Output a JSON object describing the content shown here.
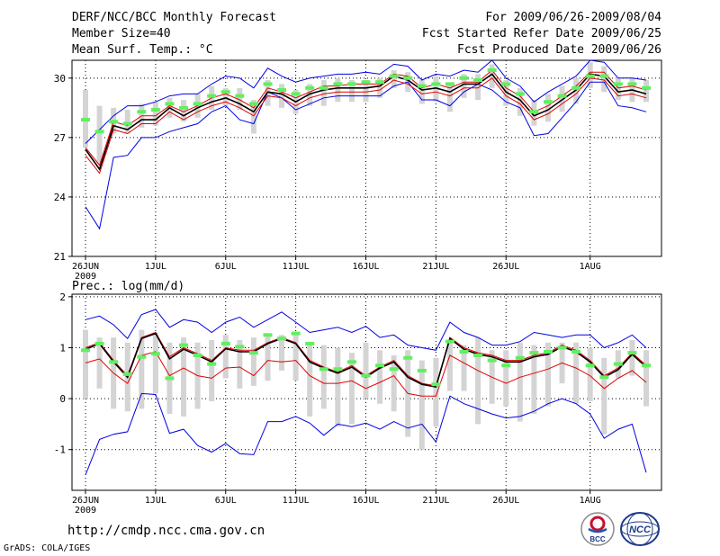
{
  "header": {
    "title": "DERF/NCC/BCC Monthly Forecast",
    "member_size": "Member Size=40",
    "variable": "Mean Surf. Temp.: °C",
    "period": "For 2009/06/26-2009/08/04",
    "refer_date": "Fcst Started Refer Date 2009/06/25",
    "produced_date": "Fcst Produced Date 2009/06/26"
  },
  "footer": {
    "url": "http://cmdp.ncc.cma.gov.cn",
    "grads": "GrADS: COLA/IGES",
    "logo_left": "BCC",
    "logo_right": "NCC"
  },
  "colors": {
    "envelope": "#0000e0",
    "percentile": "#e00000",
    "ensemble_mean": "#000000",
    "median_marker": "#5ff05f",
    "box": "#d4d4d4"
  },
  "chart_data": [
    {
      "type": "line",
      "id": "temp",
      "subtitle": "",
      "x_tick_labels": [
        "26JUN",
        "1JUL",
        "6JUL",
        "11JUL",
        "16JUL",
        "21JUL",
        "26JUL",
        "1AUG"
      ],
      "x_tick_days": [
        0,
        5,
        10,
        15,
        20,
        25,
        30,
        36
      ],
      "x_sublabel": "2009",
      "y_ticks": [
        21,
        24,
        27,
        30
      ],
      "ylim": [
        21,
        30.9
      ],
      "series": [
        {
          "name": "max",
          "values": [
            23.5,
            22.4,
            26,
            26.1,
            27,
            27,
            27.3,
            27.5,
            27.7,
            28.3,
            28.6,
            27.9,
            27.7,
            29.3,
            29,
            28.4,
            28.7,
            29,
            29.1,
            29.1,
            29.1,
            29.1,
            29.6,
            29.8,
            28.9,
            28.9,
            28.6,
            29.3,
            29.7,
            29.4,
            28.8,
            28.5,
            27.1,
            27.2,
            28,
            28.8,
            29.8,
            29.8,
            28.6,
            28.5,
            28.3
          ]
        },
        {
          "name": "p75",
          "values": [
            26.5,
            25.6,
            27.8,
            27.6,
            28.1,
            28.1,
            28.6,
            28.3,
            28.6,
            29,
            29.2,
            28.9,
            28.5,
            29.5,
            29.3,
            29,
            29.3,
            29.6,
            29.6,
            29.7,
            29.7,
            29.7,
            30.2,
            30.1,
            29.5,
            29.7,
            29.5,
            29.8,
            29.8,
            30.4,
            29.5,
            29.1,
            28.3,
            28.6,
            29.1,
            29.6,
            30.3,
            30.3,
            29.5,
            29.6,
            29.4
          ]
        },
        {
          "name": "mean",
          "values": [
            26.4,
            25.4,
            27.6,
            27.4,
            27.9,
            27.9,
            28.5,
            28.1,
            28.5,
            28.8,
            29,
            28.7,
            28.3,
            29.3,
            29.2,
            28.8,
            29.2,
            29.4,
            29.5,
            29.5,
            29.5,
            29.6,
            30.1,
            29.9,
            29.4,
            29.5,
            29.3,
            29.7,
            29.7,
            30.2,
            29.3,
            28.9,
            28.1,
            28.4,
            28.9,
            29.4,
            30.2,
            30.1,
            29.3,
            29.4,
            29.2
          ]
        },
        {
          "name": "p25",
          "values": [
            26.1,
            25.2,
            27.4,
            27.2,
            27.7,
            27.7,
            28.3,
            27.9,
            28.3,
            28.6,
            28.8,
            28.5,
            28.1,
            29.1,
            29,
            28.6,
            29,
            29.2,
            29.3,
            29.3,
            29.3,
            29.4,
            29.9,
            29.7,
            29.2,
            29.3,
            29.1,
            29.5,
            29.5,
            30,
            29.1,
            28.7,
            27.9,
            28.2,
            28.7,
            29.2,
            30,
            29.9,
            29.1,
            29.2,
            29
          ]
        },
        {
          "name": "min",
          "values": [
            26.7,
            27.4,
            28.1,
            28.6,
            28.6,
            28.8,
            29.1,
            29.2,
            29.2,
            29.7,
            30.1,
            30,
            29.5,
            30.5,
            30.1,
            29.8,
            30,
            30.1,
            30.2,
            30.2,
            30.3,
            30.2,
            30.7,
            30.6,
            29.9,
            30.2,
            30.1,
            30.4,
            30.3,
            30.9,
            30,
            29.6,
            28.8,
            29.3,
            29.7,
            30.1,
            30.9,
            30.8,
            30,
            30,
            29.9
          ]
        }
      ],
      "medians": [
        27.9,
        27.3,
        27.8,
        27.7,
        28.3,
        28.4,
        28.7,
        28.5,
        28.7,
        29.1,
        29.3,
        29.1,
        28.7,
        29.7,
        29.4,
        29.2,
        29.5,
        29.5,
        29.7,
        29.7,
        29.8,
        29.8,
        30.1,
        30,
        29.6,
        29.7,
        29.7,
        30,
        29.9,
        30.4,
        29.7,
        29.2,
        28.3,
        28.8,
        29.1,
        29.5,
        30.1,
        30.1,
        29.7,
        29.7,
        29.5
      ],
      "boxes": [
        [
          26.5,
          29.4
        ],
        [
          25.7,
          28.6
        ],
        [
          27.2,
          28.5
        ],
        [
          27.2,
          28.4
        ],
        [
          27.5,
          28.7
        ],
        [
          27.6,
          28.8
        ],
        [
          28,
          29
        ],
        [
          27.8,
          28.9
        ],
        [
          28,
          29.2
        ],
        [
          28.4,
          29.6
        ],
        [
          28.6,
          29.5
        ],
        [
          28.4,
          29.5
        ],
        [
          27.2,
          28.9
        ],
        [
          28.6,
          29.9
        ],
        [
          28.5,
          29.7
        ],
        [
          28.2,
          29.4
        ],
        [
          28.6,
          29.7
        ],
        [
          28.6,
          29.9
        ],
        [
          28.8,
          30
        ],
        [
          28.8,
          29.9
        ],
        [
          28.8,
          29.9
        ],
        [
          29,
          30
        ],
        [
          29.5,
          30.4
        ],
        [
          29.3,
          30.3
        ],
        [
          28.7,
          29.9
        ],
        [
          28.8,
          30.1
        ],
        [
          28.3,
          29.7
        ],
        [
          29,
          30.2
        ],
        [
          28.9,
          30.2
        ],
        [
          29.5,
          30.7
        ],
        [
          28.6,
          29.9
        ],
        [
          28.1,
          29.5
        ],
        [
          27.6,
          28.9
        ],
        [
          27.8,
          29.2
        ],
        [
          28.3,
          29.6
        ],
        [
          28.7,
          30
        ],
        [
          29.5,
          30.8
        ],
        [
          29.3,
          30.6
        ],
        [
          28.9,
          30
        ],
        [
          28.8,
          30
        ],
        [
          28.8,
          29.9
        ]
      ]
    },
    {
      "type": "line",
      "id": "prec",
      "subtitle": "Prec.: log(mm/d)",
      "x_tick_labels": [
        "26JUN",
        "1JUL",
        "6JUL",
        "11JUL",
        "16JUL",
        "21JUL",
        "26JUL",
        "1AUG"
      ],
      "x_tick_days": [
        0,
        5,
        10,
        15,
        20,
        25,
        30,
        36
      ],
      "x_sublabel": "2009",
      "y_ticks": [
        -1,
        0,
        1,
        2
      ],
      "ylim": [
        -1.8,
        2.05
      ],
      "series": [
        {
          "name": "max",
          "values": [
            1.55,
            1.62,
            1.45,
            1.18,
            1.65,
            1.75,
            1.4,
            1.55,
            1.5,
            1.3,
            1.5,
            1.6,
            1.4,
            1.55,
            1.7,
            1.5,
            1.3,
            1.35,
            1.4,
            1.3,
            1.42,
            1.2,
            1.25,
            1.05,
            1.0,
            0.95,
            1.5,
            1.3,
            1.2,
            1.05,
            1.05,
            1.12,
            1.3,
            1.25,
            1.2,
            1.25,
            1.25,
            1.0,
            1.1,
            1.25,
            1.0
          ]
        },
        {
          "name": "p75",
          "values": [
            1.0,
            1.1,
            0.75,
            0.45,
            1.2,
            1.3,
            0.82,
            1.0,
            0.88,
            0.75,
            1.0,
            0.95,
            0.95,
            1.1,
            1.2,
            1.1,
            0.75,
            0.62,
            0.52,
            0.65,
            0.45,
            0.62,
            0.75,
            0.45,
            0.3,
            0.25,
            1.2,
            1.0,
            0.9,
            0.85,
            0.75,
            0.75,
            0.85,
            0.9,
            1.05,
            0.95,
            0.75,
            0.45,
            0.6,
            0.9,
            0.65
          ]
        },
        {
          "name": "mean",
          "values": [
            0.97,
            1.08,
            0.72,
            0.42,
            1.18,
            1.28,
            0.78,
            0.97,
            0.85,
            0.72,
            0.98,
            0.92,
            0.92,
            1.08,
            1.18,
            1.08,
            0.72,
            0.6,
            0.5,
            0.62,
            0.42,
            0.6,
            0.72,
            0.42,
            0.28,
            0.23,
            1.18,
            0.97,
            0.87,
            0.82,
            0.72,
            0.72,
            0.82,
            0.87,
            1.02,
            0.92,
            0.72,
            0.42,
            0.57,
            0.87,
            0.62
          ]
        },
        {
          "name": "p25",
          "values": [
            0.7,
            0.78,
            0.5,
            0.3,
            0.85,
            0.92,
            0.45,
            0.6,
            0.45,
            0.4,
            0.6,
            0.62,
            0.45,
            0.75,
            0.72,
            0.75,
            0.45,
            0.3,
            0.3,
            0.35,
            0.2,
            0.32,
            0.45,
            0.1,
            0.05,
            0.05,
            0.85,
            0.7,
            0.55,
            0.42,
            0.3,
            0.42,
            0.5,
            0.58,
            0.7,
            0.6,
            0.45,
            0.2,
            0.4,
            0.55,
            0.32
          ]
        },
        {
          "name": "min",
          "values": [
            -1.5,
            -0.8,
            -0.7,
            -0.65,
            0.1,
            0.08,
            -0.68,
            -0.6,
            -0.92,
            -1.05,
            -0.88,
            -1.08,
            -1.1,
            -0.45,
            -0.45,
            -0.35,
            -0.48,
            -0.72,
            -0.5,
            -0.55,
            -0.48,
            -0.6,
            -0.45,
            -0.58,
            -0.5,
            -0.85,
            0.05,
            -0.1,
            -0.2,
            -0.3,
            -0.38,
            -0.35,
            -0.25,
            -0.1,
            0.0,
            -0.1,
            -0.3,
            -0.78,
            -0.6,
            -0.5,
            -1.45
          ]
        }
      ],
      "medians": [
        0.95,
        1.08,
        0.72,
        0.48,
        0.82,
        0.88,
        0.4,
        1.05,
        0.85,
        0.68,
        1.08,
        1.02,
        0.9,
        1.25,
        1.18,
        1.28,
        1.08,
        0.58,
        0.58,
        0.72,
        0.45,
        0.65,
        0.58,
        0.8,
        0.55,
        0.28,
        1.12,
        0.92,
        0.85,
        0.75,
        0.65,
        0.8,
        0.9,
        0.92,
        1.0,
        0.92,
        0.65,
        0.42,
        0.68,
        0.9,
        0.65
      ],
      "boxes": [
        [
          0,
          1.35
        ],
        [
          0.2,
          1.2
        ],
        [
          -0.2,
          1.2
        ],
        [
          -0.25,
          1.1
        ],
        [
          -0.2,
          1.35
        ],
        [
          0.1,
          1.3
        ],
        [
          -0.3,
          1.1
        ],
        [
          -0.35,
          1.2
        ],
        [
          -0.2,
          1.1
        ],
        [
          -0.05,
          1.15
        ],
        [
          0.4,
          1.25
        ],
        [
          0.2,
          1.15
        ],
        [
          0.25,
          1.2
        ],
        [
          0.35,
          1.25
        ],
        [
          0.55,
          1.25
        ],
        [
          0.35,
          1.25
        ],
        [
          -0.35,
          1.1
        ],
        [
          -0.2,
          1.05
        ],
        [
          -0.55,
          1.0
        ],
        [
          -0.5,
          0.9
        ],
        [
          0.0,
          1.1
        ],
        [
          -0.1,
          0.95
        ],
        [
          -0.25,
          0.85
        ],
        [
          -0.75,
          0.95
        ],
        [
          -1.0,
          0.75
        ],
        [
          -0.55,
          0.8
        ],
        [
          0.15,
          1.15
        ],
        [
          0.15,
          1.05
        ],
        [
          -0.5,
          1.2
        ],
        [
          -0.1,
          0.95
        ],
        [
          -0.15,
          0.95
        ],
        [
          -0.45,
          1.1
        ],
        [
          -0.3,
          1.05
        ],
        [
          -0.15,
          1.1
        ],
        [
          0.3,
          1.1
        ],
        [
          -0.1,
          1.1
        ],
        [
          -0.05,
          1.0
        ],
        [
          -0.7,
          0.8
        ],
        [
          0.4,
          0.95
        ],
        [
          0.45,
          1.15
        ],
        [
          -0.15,
          0.95
        ]
      ]
    }
  ]
}
